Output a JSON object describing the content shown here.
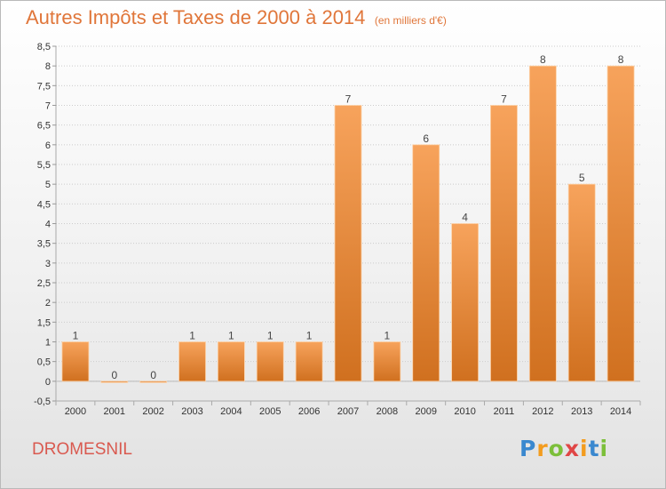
{
  "title": "Autres Impôts et Taxes de 2000 à 2014",
  "subtitle": "(en milliers d'€)",
  "commune": "DROMESNIL",
  "logo": {
    "text": "Proxiti",
    "letters": [
      "P",
      "r",
      "o",
      "x",
      "i",
      "t",
      "i"
    ],
    "colors": [
      "#3a88cf",
      "#f39c1e",
      "#7cbf3a",
      "#e04646",
      "#f39c1e",
      "#3a88cf",
      "#7cbf3a"
    ]
  },
  "colors": {
    "bar_light": "#f7a35c",
    "bar_dark": "#d0701f",
    "axis_text": "#333333",
    "grid": "#cccccc"
  },
  "chart_data": {
    "type": "bar",
    "categories": [
      "2000",
      "2001",
      "2002",
      "2003",
      "2004",
      "2005",
      "2006",
      "2007",
      "2008",
      "2009",
      "2010",
      "2011",
      "2012",
      "2013",
      "2014"
    ],
    "values": [
      1,
      0,
      0,
      1,
      1,
      1,
      1,
      7,
      1,
      6,
      4,
      7,
      8,
      5,
      8
    ],
    "data_labels": [
      "1",
      "0",
      "0",
      "1",
      "1",
      "1",
      "1",
      "7",
      "1",
      "6",
      "4",
      "7",
      "8",
      "5",
      "8"
    ],
    "ylim": [
      -0.5,
      8.5
    ],
    "yticks": [
      -0.5,
      0,
      0.5,
      1,
      1.5,
      2,
      2.5,
      3,
      3.5,
      4,
      4.5,
      5,
      5.5,
      6,
      6.5,
      7,
      7.5,
      8,
      8.5
    ],
    "ytick_labels": [
      "-0,5",
      "0",
      "0,5",
      "1",
      "1,5",
      "2",
      "2,5",
      "3",
      "3,5",
      "4",
      "4,5",
      "5",
      "5,5",
      "6",
      "6,5",
      "7",
      "7,5",
      "8",
      "8,5"
    ],
    "grid": true,
    "legend": "none"
  }
}
